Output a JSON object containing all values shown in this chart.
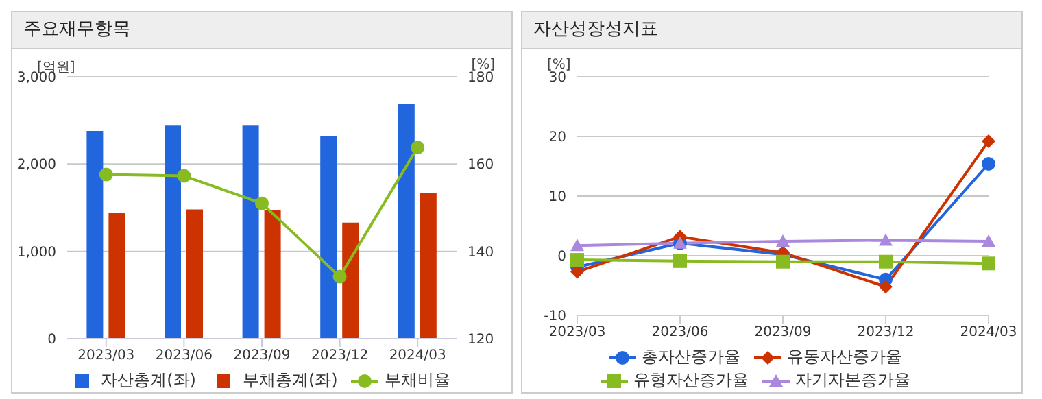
{
  "chart_data": [
    {
      "type": "bar",
      "title": "주요재무항목",
      "ylabel": "[억원]",
      "y2label": "[%]",
      "categories": [
        "2023/03",
        "2023/06",
        "2023/09",
        "2023/12",
        "2024/03"
      ],
      "series": [
        {
          "name": "자산총계(좌)",
          "color": "#2266dd",
          "values": [
            2380,
            2440,
            2440,
            2320,
            2690
          ]
        },
        {
          "name": "부채총계(좌)",
          "color": "#cc3300",
          "values": [
            1440,
            1480,
            1470,
            1330,
            1670
          ]
        },
        {
          "name": "부채비율",
          "type": "line",
          "axis": "y2",
          "color": "#88bb22",
          "marker": "circle",
          "values": [
            157.6,
            157.3,
            151.0,
            134.2,
            163.8
          ]
        }
      ],
      "ylim": [
        0,
        3000
      ],
      "yticks": [
        0,
        {
          "value": 1000,
          "label": "1,000"
        },
        {
          "value": 2000,
          "label": "2,000"
        },
        {
          "value": 3000,
          "label": "3,000"
        }
      ],
      "y2lim": [
        120,
        180
      ],
      "y2ticks": [
        120,
        140,
        160,
        180
      ],
      "grid": "y",
      "legend": "bottom"
    },
    {
      "type": "line",
      "title": "자산성장성지표",
      "ylabel": "[%]",
      "categories": [
        "2023/03",
        "2023/06",
        "2023/09",
        "2023/12",
        "2024/03"
      ],
      "series": [
        {
          "name": "총자산증가율",
          "color": "#2266dd",
          "marker": "circle",
          "values": [
            -1.9,
            2.1,
            0.2,
            -4.0,
            15.4
          ]
        },
        {
          "name": "유동자산증가율",
          "color": "#cc3300",
          "marker": "diamond",
          "values": [
            -2.7,
            3.2,
            0.5,
            -5.2,
            19.2
          ]
        },
        {
          "name": "유형자산증가율",
          "color": "#88bb22",
          "marker": "square",
          "values": [
            -0.7,
            -0.9,
            -1.0,
            -1.0,
            -1.3
          ]
        },
        {
          "name": "자기자본증가율",
          "color": "#aa88dd",
          "marker": "triangle",
          "values": [
            1.7,
            2.1,
            2.4,
            2.6,
            2.4
          ]
        }
      ],
      "ylim": [
        -10,
        30
      ],
      "yticks": [
        -10,
        0,
        10,
        20,
        30
      ],
      "grid": "y",
      "legend": "bottom"
    }
  ]
}
